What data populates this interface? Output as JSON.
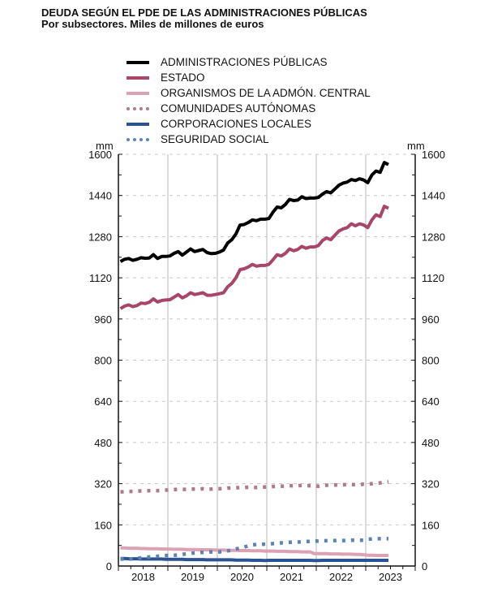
{
  "chart_data": {
    "type": "line",
    "title": "DEUDA SEGÚN EL PDE DE LAS ADMINISTRACIONES PÚBLICAS",
    "subtitle": "Por subsectores. Miles de millones de euros",
    "ylabel_left": "mm",
    "ylabel_right": "mm",
    "ylim": [
      0,
      1600
    ],
    "yticks": [
      "0",
      "160",
      "320",
      "480",
      "640",
      "800",
      "960",
      "1120",
      "1280",
      "1440",
      "1600"
    ],
    "xticks": [
      "2018",
      "2019",
      "2020",
      "2021",
      "2022",
      "2023"
    ],
    "x_frequency": "monthly",
    "x_start": "2018-01",
    "x_end": "2023-06",
    "grid": "horizontal dashed, vertical solid at year boundaries",
    "legend_position": "top",
    "series": [
      {
        "name": "ADMINISTRACIONES PÚBLICAS",
        "color": "#000000",
        "style": "solid",
        "values": [
          1183,
          1192,
          1195,
          1188,
          1192,
          1198,
          1196,
          1197,
          1210,
          1195,
          1203,
          1203,
          1205,
          1215,
          1222,
          1208,
          1220,
          1232,
          1222,
          1226,
          1230,
          1218,
          1214,
          1215,
          1220,
          1228,
          1255,
          1268,
          1290,
          1325,
          1327,
          1335,
          1345,
          1342,
          1348,
          1348,
          1350,
          1375,
          1395,
          1392,
          1405,
          1425,
          1420,
          1422,
          1435,
          1428,
          1430,
          1430,
          1432,
          1445,
          1455,
          1450,
          1465,
          1480,
          1488,
          1492,
          1502,
          1498,
          1505,
          1500,
          1490,
          1520,
          1535,
          1530,
          1568,
          1560
        ]
      },
      {
        "name": "ESTADO",
        "color": "#a8466a",
        "style": "solid",
        "values": [
          1000,
          1010,
          1015,
          1008,
          1012,
          1022,
          1020,
          1025,
          1038,
          1026,
          1032,
          1034,
          1035,
          1045,
          1055,
          1042,
          1050,
          1062,
          1055,
          1058,
          1062,
          1052,
          1052,
          1055,
          1058,
          1062,
          1085,
          1098,
          1120,
          1152,
          1155,
          1162,
          1172,
          1165,
          1168,
          1168,
          1172,
          1190,
          1210,
          1205,
          1215,
          1232,
          1225,
          1230,
          1242,
          1235,
          1240,
          1240,
          1245,
          1265,
          1275,
          1268,
          1285,
          1302,
          1310,
          1315,
          1330,
          1322,
          1330,
          1325,
          1315,
          1345,
          1365,
          1358,
          1398,
          1390
        ]
      },
      {
        "name": "ORGANISMOS DE LA ADMÓN. CENTRAL",
        "color": "#dca2b4",
        "style": "solid",
        "values": [
          70,
          70,
          69,
          69,
          69,
          68,
          68,
          67,
          67,
          67,
          66,
          66,
          66,
          65,
          65,
          65,
          64,
          64,
          64,
          63,
          63,
          63,
          63,
          62,
          62,
          62,
          61,
          61,
          61,
          60,
          60,
          60,
          59,
          59,
          59,
          58,
          58,
          58,
          57,
          57,
          57,
          56,
          56,
          56,
          55,
          55,
          55,
          48,
          48,
          48,
          48,
          47,
          47,
          47,
          46,
          46,
          46,
          45,
          45,
          44,
          42,
          42,
          41,
          41,
          41,
          41
        ]
      },
      {
        "name": "COMUNIDADES AUTÓNOMAS",
        "color": "#b07a8e",
        "style": "dotted",
        "values": [
          288,
          289,
          290,
          290,
          291,
          292,
          292,
          293,
          294,
          293,
          294,
          295,
          296,
          297,
          298,
          298,
          298,
          299,
          299,
          299,
          300,
          298,
          299,
          300,
          300,
          301,
          303,
          303,
          304,
          305,
          305,
          306,
          306,
          305,
          306,
          307,
          308,
          309,
          310,
          310,
          311,
          312,
          312,
          312,
          313,
          312,
          312,
          313,
          310,
          312,
          314,
          314,
          315,
          315,
          316,
          316,
          317,
          316,
          317,
          318,
          318,
          320,
          322,
          323,
          325,
          327
        ]
      },
      {
        "name": "CORPORACIONES LOCALES",
        "color": "#2a5394",
        "style": "solid",
        "values": [
          29,
          29,
          28,
          28,
          28,
          27,
          27,
          27,
          27,
          27,
          27,
          26,
          26,
          26,
          26,
          26,
          25,
          25,
          25,
          25,
          25,
          24,
          24,
          24,
          24,
          24,
          24,
          24,
          23,
          23,
          23,
          23,
          22,
          22,
          22,
          21,
          22,
          22,
          22,
          22,
          22,
          22,
          22,
          22,
          22,
          22,
          22,
          21,
          21,
          22,
          22,
          22,
          22,
          22,
          22,
          22,
          22,
          22,
          22,
          22,
          22,
          22,
          22,
          22,
          22,
          22
        ]
      },
      {
        "name": "SEGURIDAD SOCIAL",
        "color": "#5b84b0",
        "style": "dotted",
        "values": [
          27,
          27,
          27,
          28,
          30,
          32,
          34,
          35,
          37,
          38,
          40,
          41,
          41,
          42,
          43,
          45,
          47,
          49,
          51,
          52,
          53,
          54,
          55,
          55,
          55,
          57,
          59,
          62,
          66,
          70,
          74,
          78,
          82,
          84,
          85,
          85,
          85,
          87,
          89,
          90,
          91,
          92,
          93,
          93,
          94,
          95,
          96,
          97,
          97,
          98,
          98,
          98,
          99,
          99,
          99,
          99,
          100,
          100,
          100,
          100,
          104,
          105,
          106,
          106,
          106,
          106
        ]
      }
    ]
  }
}
